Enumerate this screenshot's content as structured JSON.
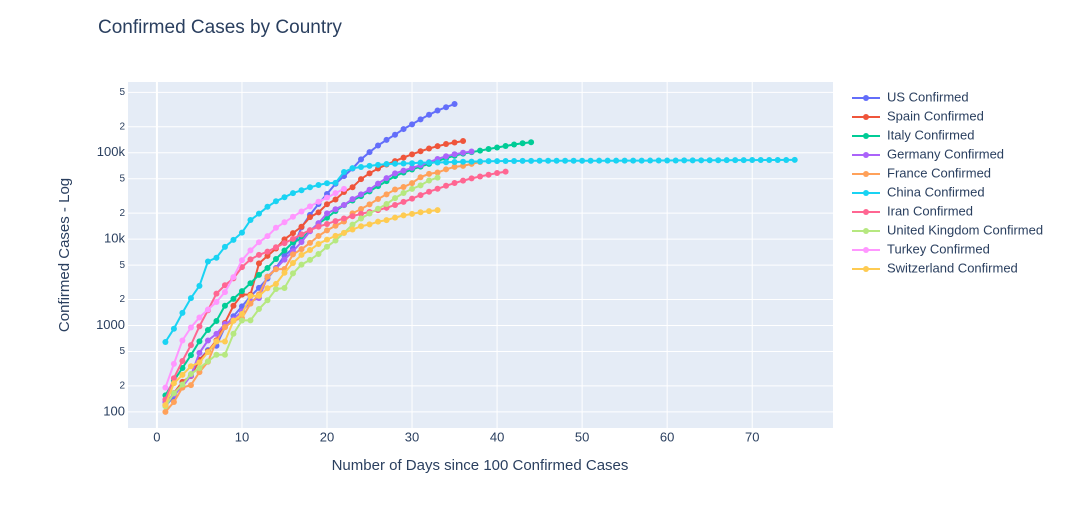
{
  "chart_data": {
    "type": "line",
    "title": "Confirmed Cases by Country",
    "x_label": "Number of Days since 100 Confirmed Cases",
    "y_label": "Confirmed Cases - Log",
    "y_log": true,
    "grid": true,
    "xlim": [
      -3.4,
      79.5
    ],
    "xticks": [
      0,
      10,
      20,
      30,
      40,
      50,
      60,
      70
    ],
    "ylim": [
      65,
      660000
    ],
    "yticks": [
      100,
      {
        "value": 200,
        "label": "2"
      },
      {
        "value": 500,
        "label": "5"
      },
      1000,
      {
        "value": 2000,
        "label": "2"
      },
      {
        "value": 5000,
        "label": "5"
      },
      {
        "value": 10000,
        "label": "10k"
      },
      {
        "value": 20000,
        "label": "2"
      },
      {
        "value": 50000,
        "label": "5"
      },
      {
        "value": 100000,
        "label": "100k"
      },
      {
        "value": 200000,
        "label": "2"
      },
      {
        "value": 500000,
        "label": "5"
      }
    ],
    "series": [
      {
        "name": "US Confirmed",
        "color": "#636efa",
        "x": [
          1,
          2,
          3,
          4,
          5,
          6,
          7,
          8,
          9,
          10,
          11,
          12,
          13,
          14,
          15,
          16,
          17,
          18,
          19,
          20,
          21,
          22,
          23,
          24,
          25,
          26,
          27,
          28,
          29,
          30,
          31,
          32,
          33,
          34,
          35
        ],
        "values": [
          118,
          149,
          217,
          262,
          402,
          518,
          583,
          959,
          1281,
          1663,
          2179,
          2726,
          3499,
          4632,
          6421,
          7786,
          13680,
          19101,
          25493,
          33276,
          43847,
          53740,
          65778,
          83836,
          101657,
          121478,
          140886,
          161807,
          188172,
          213372,
          243453,
          275586,
          308850,
          337072,
          366667
        ]
      },
      {
        "name": "Spain Confirmed",
        "color": "#EF553B",
        "x": [
          1,
          2,
          3,
          4,
          5,
          6,
          7,
          8,
          9,
          10,
          11,
          12,
          13,
          14,
          15,
          16,
          17,
          18,
          19,
          20,
          21,
          22,
          23,
          24,
          25,
          26,
          27,
          28,
          29,
          30,
          31,
          32,
          33,
          34,
          35,
          36
        ],
        "values": [
          120,
          165,
          222,
          259,
          400,
          500,
          673,
          1073,
          1695,
          2277,
          2277,
          5232,
          6391,
          7798,
          9942,
          11748,
          13910,
          17963,
          20410,
          25374,
          28768,
          35136,
          39885,
          49515,
          57786,
          65719,
          73235,
          80110,
          87956,
          95923,
          104118,
          112065,
          119199,
          126168,
          131646,
          136675
        ]
      },
      {
        "name": "Italy Confirmed",
        "color": "#00cc96",
        "x": [
          1,
          2,
          3,
          4,
          5,
          6,
          7,
          8,
          9,
          10,
          11,
          12,
          13,
          14,
          15,
          16,
          17,
          18,
          19,
          20,
          21,
          22,
          23,
          24,
          25,
          26,
          27,
          28,
          29,
          30,
          31,
          32,
          33,
          34,
          35,
          36,
          37,
          38,
          39,
          40,
          41,
          42,
          43,
          44
        ],
        "values": [
          155,
          229,
          322,
          453,
          655,
          888,
          1128,
          1694,
          2036,
          2502,
          3089,
          3858,
          4636,
          5883,
          7375,
          9172,
          10149,
          12462,
          15113,
          17660,
          21157,
          24747,
          27980,
          31506,
          35713,
          41035,
          47021,
          53578,
          59138,
          63927,
          69176,
          74386,
          80589,
          86498,
          92472,
          97689,
          101739,
          105792,
          110574,
          115242,
          119827,
          124632,
          128948,
          132547
        ]
      },
      {
        "name": "Germany Confirmed",
        "color": "#ab63fa",
        "x": [
          1,
          2,
          3,
          4,
          5,
          6,
          7,
          8,
          9,
          10,
          11,
          12,
          13,
          14,
          15,
          16,
          17,
          18,
          19,
          20,
          21,
          22,
          23,
          24,
          25,
          26,
          27,
          28,
          29,
          30,
          31,
          32,
          33,
          34,
          35,
          36,
          37
        ],
        "values": [
          130,
          159,
          196,
          262,
          482,
          670,
          799,
          1040,
          1176,
          1457,
          1908,
          2078,
          3675,
          4585,
          5795,
          7272,
          9257,
          12327,
          15320,
          19848,
          22213,
          24873,
          29056,
          32986,
          37323,
          43938,
          50871,
          57695,
          62095,
          66885,
          71808,
          77872,
          84794,
          91159,
          96092,
          100123,
          103374
        ]
      },
      {
        "name": "France Confirmed",
        "color": "#FFA15A",
        "x": [
          1,
          2,
          3,
          4,
          5,
          6,
          7,
          8,
          9,
          10,
          11,
          12,
          13,
          14,
          15,
          16,
          17,
          18,
          19,
          20,
          21,
          22,
          23,
          24,
          25,
          26,
          27,
          28,
          29,
          30,
          31,
          32,
          33,
          34,
          35,
          36,
          37,
          38
        ],
        "values": [
          100,
          130,
          191,
          204,
          288,
          380,
          656,
          957,
          1134,
          1217,
          1792,
          2289,
          3672,
          4480,
          4513,
          6650,
          7652,
          9043,
          10871,
          12612,
          14282,
          16018,
          19856,
          22304,
          25233,
          29155,
          32964,
          37575,
          40174,
          44550,
          52128,
          56989,
          59105,
          64338,
          68605,
          70478,
          74390,
          78167
        ]
      },
      {
        "name": "China Confirmed",
        "color": "#19d3f3",
        "x": [
          1,
          2,
          3,
          4,
          5,
          6,
          7,
          8,
          9,
          10,
          11,
          12,
          13,
          14,
          15,
          16,
          17,
          18,
          19,
          20,
          21,
          22,
          23,
          24,
          25,
          26,
          27,
          28,
          29,
          30,
          31,
          32,
          33,
          34,
          35,
          36,
          37,
          38,
          39,
          40,
          41,
          42,
          43,
          44,
          45,
          46,
          47,
          48,
          49,
          50,
          51,
          52,
          53,
          54,
          55,
          56,
          57,
          58,
          59,
          60,
          61,
          62,
          63,
          64,
          65,
          66,
          67,
          68,
          69,
          70,
          71,
          72,
          73,
          74,
          75
        ],
        "values": [
          643,
          918,
          1400,
          2075,
          2877,
          5509,
          6087,
          8141,
          9802,
          11891,
          16630,
          19716,
          23707,
          27440,
          30587,
          34110,
          36814,
          39829,
          42354,
          44386,
          44759,
          59895,
          66358,
          68413,
          70513,
          72434,
          74211,
          74619,
          75077,
          75550,
          77001,
          77022,
          77241,
          77754,
          78166,
          78600,
          78928,
          79356,
          79932,
          80136,
          80261,
          80386,
          80537,
          80690,
          80770,
          80823,
          80860,
          80887,
          80921,
          80932,
          80945,
          80977,
          81003,
          81033,
          81058,
          81102,
          81156,
          81250,
          81305,
          81435,
          81498,
          81591,
          81661,
          81782,
          81897,
          81999,
          82122,
          82198,
          82279,
          82361,
          82432,
          82511,
          82543,
          82602,
          82665
        ]
      },
      {
        "name": "Iran Confirmed",
        "color": "#FF6692",
        "x": [
          1,
          2,
          3,
          4,
          5,
          6,
          7,
          8,
          9,
          10,
          11,
          12,
          13,
          14,
          15,
          16,
          17,
          18,
          19,
          20,
          21,
          22,
          23,
          24,
          25,
          26,
          27,
          28,
          29,
          30,
          31,
          32,
          33,
          34,
          35,
          36,
          37,
          38,
          39,
          40,
          41
        ],
        "values": [
          139,
          245,
          388,
          593,
          978,
          1501,
          2336,
          2922,
          3513,
          4747,
          5823,
          6566,
          7161,
          8042,
          9000,
          10075,
          11364,
          12729,
          13938,
          14991,
          16169,
          17361,
          18407,
          19644,
          20610,
          21638,
          23049,
          24811,
          27017,
          29406,
          32332,
          35408,
          38309,
          41495,
          44605,
          47593,
          50468,
          53183,
          55743,
          58226,
          60500
        ]
      },
      {
        "name": "United Kingdom Confirmed",
        "color": "#B6E880",
        "x": [
          1,
          2,
          3,
          4,
          5,
          6,
          7,
          8,
          9,
          10,
          11,
          12,
          13,
          14,
          15,
          16,
          17,
          18,
          19,
          20,
          21,
          22,
          23,
          24,
          25,
          26,
          27,
          28,
          29,
          30,
          31,
          32,
          33
        ],
        "values": [
          116,
          164,
          207,
          274,
          322,
          384,
          459,
          459,
          802,
          1144,
          1145,
          1551,
          1960,
          2642,
          2716,
          4014,
          5067,
          5745,
          6726,
          8164,
          9640,
          11812,
          14745,
          17312,
          19780,
          22453,
          25481,
          29865,
          34173,
          38168,
          41903,
          47806,
          51608
        ]
      },
      {
        "name": "Turkey Confirmed",
        "color": "#FF97FF",
        "x": [
          1,
          2,
          3,
          4,
          5,
          6,
          7,
          8,
          9,
          10,
          11,
          12,
          13,
          14,
          15,
          16,
          17,
          18,
          19,
          20,
          21,
          22
        ],
        "values": [
          191,
          359,
          670,
          947,
          1236,
          1529,
          1872,
          2433,
          3629,
          5698,
          7402,
          9217,
          10827,
          13531,
          15679,
          18135,
          20921,
          23934,
          27069,
          30217,
          34109,
          38226
        ]
      },
      {
        "name": "Switzerland Confirmed",
        "color": "#FECB52",
        "x": [
          1,
          2,
          3,
          4,
          5,
          6,
          7,
          8,
          9,
          10,
          11,
          12,
          13,
          14,
          15,
          16,
          17,
          18,
          19,
          20,
          21,
          22,
          23,
          24,
          25,
          26,
          27,
          28,
          29,
          30,
          31,
          32,
          33
        ],
        "values": [
          120,
          214,
          268,
          337,
          374,
          491,
          652,
          652,
          1139,
          1359,
          2200,
          2200,
          2700,
          3028,
          4075,
          5294,
          6575,
          7474,
          8795,
          9877,
          10897,
          11811,
          12928,
          14076,
          14829,
          15922,
          16605,
          17768,
          18827,
          19606,
          20505,
          21100,
          21657
        ]
      }
    ]
  }
}
